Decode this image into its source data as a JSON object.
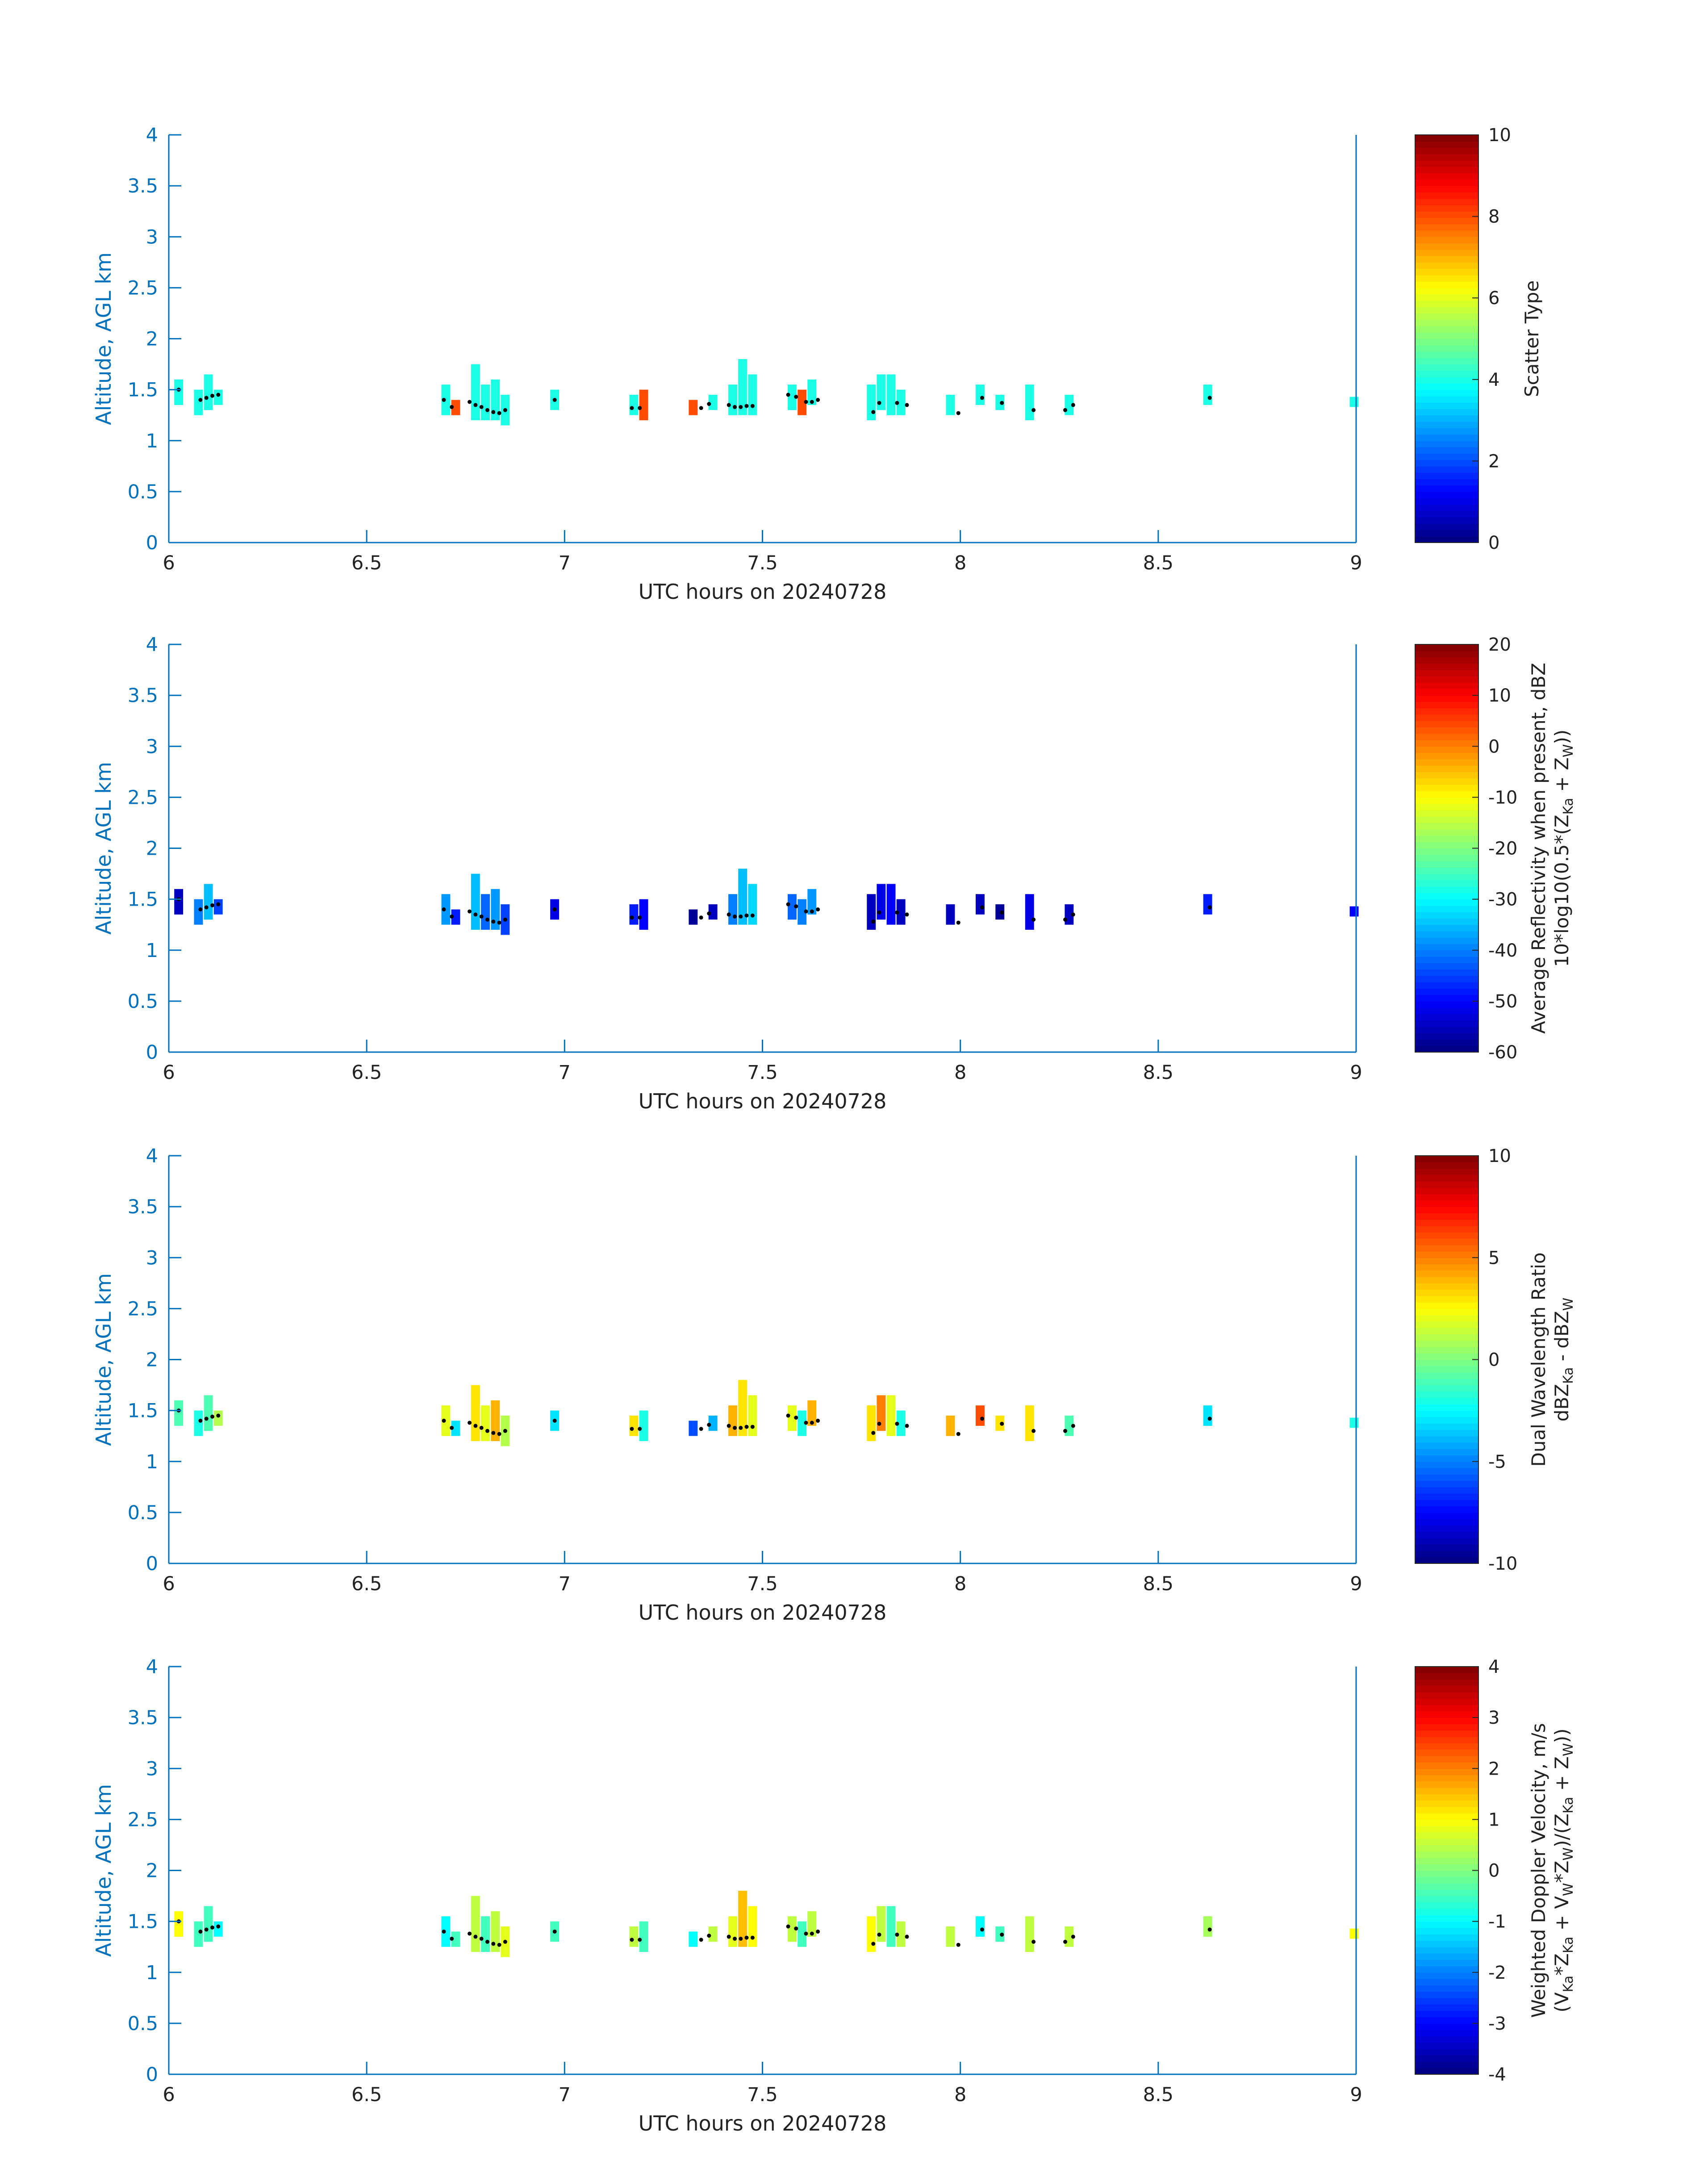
{
  "chart_data": [
    {
      "type": "heatmap",
      "xlabel": "UTC hours on 20240728",
      "ylabel": "Altitude, AGL km",
      "xlim": [
        6,
        9
      ],
      "ylim": [
        0,
        4
      ],
      "xticks": [
        "6",
        "6.5",
        "7",
        "7.5",
        "8",
        "8.5",
        "9"
      ],
      "yticks": [
        "0",
        "0.5",
        "1",
        "1.5",
        "2",
        "2.5",
        "3",
        "3.5",
        "4"
      ],
      "colorbar": {
        "label_lines": [
          {
            "t": "Scatter Type"
          }
        ],
        "range": [
          0,
          10
        ],
        "ticks": [
          "0",
          "2",
          "4",
          "6",
          "8",
          "10"
        ]
      }
    },
    {
      "type": "heatmap",
      "xlabel": "UTC hours on 20240728",
      "ylabel": "Altitude, AGL km",
      "xlim": [
        6,
        9
      ],
      "ylim": [
        0,
        4
      ],
      "xticks": [
        "6",
        "6.5",
        "7",
        "7.5",
        "8",
        "8.5",
        "9"
      ],
      "yticks": [
        "0",
        "0.5",
        "1",
        "1.5",
        "2",
        "2.5",
        "3",
        "3.5",
        "4"
      ],
      "colorbar": {
        "label_lines": [
          {
            "t": "Average Reflectivity when present, dBZ"
          },
          {
            "t": "10*log10(0.5*(Z",
            "sub1": "Ka",
            "mid": " + Z",
            "sub2": "W",
            "end": "))"
          }
        ],
        "range": [
          -60,
          20
        ],
        "ticks": [
          "-60",
          "-50",
          "-40",
          "-30",
          "-20",
          "-10",
          "0",
          "10",
          "20"
        ]
      }
    },
    {
      "type": "heatmap",
      "xlabel": "UTC hours on 20240728",
      "ylabel": "Altitude, AGL km",
      "xlim": [
        6,
        9
      ],
      "ylim": [
        0,
        4
      ],
      "xticks": [
        "6",
        "6.5",
        "7",
        "7.5",
        "8",
        "8.5",
        "9"
      ],
      "yticks": [
        "0",
        "0.5",
        "1",
        "1.5",
        "2",
        "2.5",
        "3",
        "3.5",
        "4"
      ],
      "colorbar": {
        "label_lines": [
          {
            "t": "Dual Wavelength Ratio"
          },
          {
            "t": "dBZ",
            "sub1": "Ka",
            "mid": " - dBZ",
            "sub2": "W",
            "end": ""
          }
        ],
        "range": [
          -10,
          10
        ],
        "ticks": [
          "-10",
          "-5",
          "0",
          "5",
          "10"
        ]
      }
    },
    {
      "type": "heatmap",
      "xlabel": "UTC hours on 20240728",
      "ylabel": "Altitude, AGL km",
      "xlim": [
        6,
        9
      ],
      "ylim": [
        0,
        4
      ],
      "xticks": [
        "6",
        "6.5",
        "7",
        "7.5",
        "8",
        "8.5",
        "9"
      ],
      "yticks": [
        "0",
        "0.5",
        "1",
        "1.5",
        "2",
        "2.5",
        "3",
        "3.5",
        "4"
      ],
      "colorbar": {
        "label_lines": [
          {
            "t": "Weighted Doppler Velocity, m/s"
          },
          {
            "t": "(V",
            "sub1": "Ka",
            "mid": "*Z",
            "sub2": "Ka",
            "end": " + V",
            "sub3": "W",
            "end2": "*Z",
            "sub4": "W",
            "end3": ")/(Z",
            "sub5": "Ka",
            "end4": " + Z",
            "sub6": "W",
            "end5": "))"
          }
        ],
        "range": [
          -4,
          4
        ],
        "ticks": [
          "-4",
          "-3",
          "-2",
          "-1",
          "0",
          "1",
          "2",
          "3",
          "4"
        ]
      }
    }
  ],
  "cells": [
    {
      "x": 6.025,
      "y0": 1.35,
      "y1": 1.6,
      "v": [
        4,
        -55,
        -1,
        1
      ]
    },
    {
      "x": 6.075,
      "y0": 1.25,
      "y1": 1.5,
      "v": [
        4,
        -40,
        -2,
        -0.5
      ]
    },
    {
      "x": 6.1,
      "y0": 1.3,
      "y1": 1.65,
      "v": [
        4,
        -35,
        -1,
        -0.5
      ]
    },
    {
      "x": 6.125,
      "y0": 1.35,
      "y1": 1.5,
      "v": [
        4,
        -45,
        1,
        -1
      ]
    },
    {
      "x": 6.7,
      "y0": 1.25,
      "y1": 1.55,
      "v": [
        4,
        -38,
        2,
        -1
      ]
    },
    {
      "x": 6.725,
      "y0": 1.25,
      "y1": 1.4,
      "v": [
        8,
        -48,
        -3,
        -0.5
      ]
    },
    {
      "x": 6.775,
      "y0": 1.2,
      "y1": 1.75,
      "v": [
        4,
        -35,
        3,
        0.5
      ]
    },
    {
      "x": 6.8,
      "y0": 1.2,
      "y1": 1.55,
      "v": [
        4,
        -42,
        2,
        -0.5
      ]
    },
    {
      "x": 6.825,
      "y0": 1.2,
      "y1": 1.6,
      "v": [
        4,
        -38,
        4,
        0.5
      ]
    },
    {
      "x": 6.85,
      "y0": 1.15,
      "y1": 1.45,
      "v": [
        4,
        -45,
        1,
        0.8
      ]
    },
    {
      "x": 6.975,
      "y0": 1.3,
      "y1": 1.5,
      "v": [
        4,
        -52,
        -3,
        -0.5
      ]
    },
    {
      "x": 7.175,
      "y0": 1.25,
      "y1": 1.45,
      "v": [
        4,
        -48,
        3,
        0.5
      ]
    },
    {
      "x": 7.2,
      "y0": 1.2,
      "y1": 1.5,
      "v": [
        8,
        -50,
        -2,
        -0.5
      ]
    },
    {
      "x": 7.325,
      "y0": 1.25,
      "y1": 1.4,
      "v": [
        8,
        -58,
        -6,
        -1
      ]
    },
    {
      "x": 7.375,
      "y0": 1.3,
      "y1": 1.45,
      "v": [
        4,
        -55,
        -4,
        0.5
      ]
    },
    {
      "x": 7.425,
      "y0": 1.25,
      "y1": 1.55,
      "v": [
        4,
        -40,
        4,
        0.8
      ]
    },
    {
      "x": 7.45,
      "y0": 1.25,
      "y1": 1.8,
      "v": [
        4,
        -35,
        3,
        1.5
      ]
    },
    {
      "x": 7.475,
      "y0": 1.25,
      "y1": 1.65,
      "v": [
        4,
        -33,
        2,
        1
      ]
    },
    {
      "x": 7.575,
      "y0": 1.3,
      "y1": 1.55,
      "v": [
        4,
        -42,
        2,
        0.5
      ]
    },
    {
      "x": 7.6,
      "y0": 1.25,
      "y1": 1.5,
      "v": [
        8,
        -40,
        -2,
        -0.5
      ]
    },
    {
      "x": 7.625,
      "y0": 1.35,
      "y1": 1.6,
      "v": [
        4,
        -38,
        4,
        0.5
      ]
    },
    {
      "x": 7.775,
      "y0": 1.2,
      "y1": 1.55,
      "v": [
        4,
        -55,
        3,
        1
      ]
    },
    {
      "x": 7.8,
      "y0": 1.3,
      "y1": 1.65,
      "v": [
        4,
        -52,
        5,
        0.5
      ]
    },
    {
      "x": 7.825,
      "y0": 1.25,
      "y1": 1.65,
      "v": [
        4,
        -50,
        2,
        -0.5
      ]
    },
    {
      "x": 7.85,
      "y0": 1.25,
      "y1": 1.5,
      "v": [
        4,
        -55,
        -2,
        0.5
      ]
    },
    {
      "x": 7.975,
      "y0": 1.25,
      "y1": 1.45,
      "v": [
        4,
        -55,
        4,
        0.5
      ]
    },
    {
      "x": 8.05,
      "y0": 1.35,
      "y1": 1.55,
      "v": [
        4,
        -55,
        6,
        -1
      ]
    },
    {
      "x": 8.1,
      "y0": 1.3,
      "y1": 1.45,
      "v": [
        4,
        -58,
        3,
        -0.5
      ]
    },
    {
      "x": 8.175,
      "y0": 1.2,
      "y1": 1.55,
      "v": [
        4,
        -52,
        3,
        0.5
      ]
    },
    {
      "x": 8.275,
      "y0": 1.25,
      "y1": 1.45,
      "v": [
        4,
        -55,
        -1,
        0.5
      ]
    },
    {
      "x": 8.625,
      "y0": 1.35,
      "y1": 1.55,
      "v": [
        4,
        -48,
        -3,
        0.3
      ]
    },
    {
      "x": 8.995,
      "y0": 1.33,
      "y1": 1.43,
      "v": [
        4,
        -50,
        -2,
        1
      ]
    }
  ],
  "cloudbase_points": [
    {
      "x": 6.025,
      "y": 1.5
    },
    {
      "x": 6.08,
      "y": 1.4
    },
    {
      "x": 6.095,
      "y": 1.42
    },
    {
      "x": 6.11,
      "y": 1.44
    },
    {
      "x": 6.125,
      "y": 1.45
    },
    {
      "x": 6.695,
      "y": 1.4
    },
    {
      "x": 6.715,
      "y": 1.33
    },
    {
      "x": 6.76,
      "y": 1.38
    },
    {
      "x": 6.775,
      "y": 1.35
    },
    {
      "x": 6.79,
      "y": 1.33
    },
    {
      "x": 6.805,
      "y": 1.3
    },
    {
      "x": 6.82,
      "y": 1.28
    },
    {
      "x": 6.835,
      "y": 1.27
    },
    {
      "x": 6.85,
      "y": 1.3
    },
    {
      "x": 6.975,
      "y": 1.4
    },
    {
      "x": 7.17,
      "y": 1.32
    },
    {
      "x": 7.19,
      "y": 1.32
    },
    {
      "x": 7.345,
      "y": 1.32
    },
    {
      "x": 7.365,
      "y": 1.36
    },
    {
      "x": 7.415,
      "y": 1.35
    },
    {
      "x": 7.43,
      "y": 1.33
    },
    {
      "x": 7.445,
      "y": 1.33
    },
    {
      "x": 7.46,
      "y": 1.34
    },
    {
      "x": 7.475,
      "y": 1.34
    },
    {
      "x": 7.565,
      "y": 1.45
    },
    {
      "x": 7.585,
      "y": 1.43
    },
    {
      "x": 7.61,
      "y": 1.38
    },
    {
      "x": 7.625,
      "y": 1.38
    },
    {
      "x": 7.64,
      "y": 1.4
    },
    {
      "x": 7.78,
      "y": 1.28
    },
    {
      "x": 7.795,
      "y": 1.37
    },
    {
      "x": 7.84,
      "y": 1.37
    },
    {
      "x": 7.865,
      "y": 1.35
    },
    {
      "x": 7.995,
      "y": 1.27
    },
    {
      "x": 8.055,
      "y": 1.42
    },
    {
      "x": 8.105,
      "y": 1.37
    },
    {
      "x": 8.185,
      "y": 1.3
    },
    {
      "x": 8.265,
      "y": 1.3
    },
    {
      "x": 8.285,
      "y": 1.35
    },
    {
      "x": 8.63,
      "y": 1.42
    }
  ]
}
